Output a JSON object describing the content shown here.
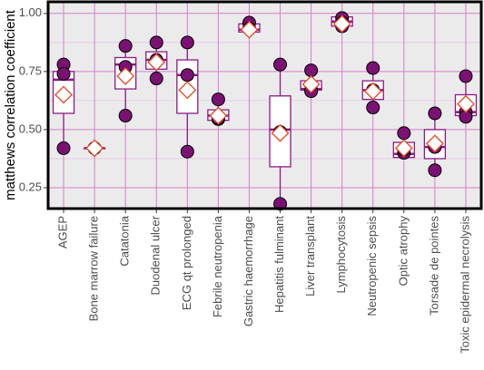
{
  "chart_data": {
    "type": "box",
    "y_label": "matthews correlation coefficient",
    "categories": [
      "AGEP",
      "Bone marrow failure",
      "Catatonia",
      "Duodenal ulcer",
      "ECG qt prolonged",
      "Febrile neutropenia",
      "Gastric haemorrhage",
      "Hepatitis fulminant",
      "Liver transplant",
      "Lymphocytosis",
      "Neutropenic sepsis",
      "Optic atrophy",
      "Torsade de pointes",
      "Toxic epidermal necrolysis"
    ],
    "boxes": [
      {
        "whislo": 0.42,
        "q1": 0.57,
        "med": 0.715,
        "q3": 0.75,
        "whishi": 0.78,
        "mean": 0.65,
        "points": [
          0.78,
          0.74,
          0.42
        ]
      },
      {
        "whislo": 0.42,
        "q1": 0.42,
        "med": 0.42,
        "q3": 0.42,
        "whishi": 0.42,
        "mean": 0.42,
        "points": [
          0.42,
          0.42
        ]
      },
      {
        "whislo": 0.56,
        "q1": 0.675,
        "med": 0.78,
        "q3": 0.81,
        "whishi": 0.86,
        "mean": 0.73,
        "points": [
          0.86,
          0.77,
          0.56
        ]
      },
      {
        "whislo": 0.72,
        "q1": 0.76,
        "med": 0.8,
        "q3": 0.835,
        "whishi": 0.875,
        "mean": 0.79,
        "points": [
          0.875,
          0.8,
          0.72
        ]
      },
      {
        "whislo": 0.405,
        "q1": 0.57,
        "med": 0.735,
        "q3": 0.8,
        "whishi": 0.875,
        "mean": 0.67,
        "points": [
          0.875,
          0.735,
          0.405
        ]
      },
      {
        "whislo": 0.54,
        "q1": 0.54,
        "med": 0.56,
        "q3": 0.585,
        "whishi": 0.63,
        "mean": 0.56,
        "points": [
          0.63,
          0.545,
          0.55
        ]
      },
      {
        "whislo": 0.92,
        "q1": 0.92,
        "med": 0.93,
        "q3": 0.955,
        "whishi": 0.96,
        "mean": 0.93,
        "points": [
          0.96,
          0.935
        ]
      },
      {
        "whislo": 0.18,
        "q1": 0.34,
        "med": 0.5,
        "q3": 0.645,
        "whishi": 0.78,
        "mean": 0.485,
        "points": [
          0.78,
          0.49,
          0.18
        ]
      },
      {
        "whislo": 0.665,
        "q1": 0.67,
        "med": 0.675,
        "q3": 0.71,
        "whishi": 0.755,
        "mean": 0.695,
        "points": [
          0.755,
          0.67,
          0.665
        ]
      },
      {
        "whislo": 0.945,
        "q1": 0.945,
        "med": 0.965,
        "q3": 0.985,
        "whishi": 0.985,
        "mean": 0.955,
        "points": [
          0.98,
          0.945,
          0.96
        ]
      },
      {
        "whislo": 0.595,
        "q1": 0.63,
        "med": 0.67,
        "q3": 0.71,
        "whishi": 0.765,
        "mean": 0.665,
        "points": [
          0.765,
          0.67,
          0.595
        ]
      },
      {
        "whislo": 0.38,
        "q1": 0.38,
        "med": 0.395,
        "q3": 0.445,
        "whishi": 0.485,
        "mean": 0.42,
        "points": [
          0.485,
          0.4,
          0.415
        ]
      },
      {
        "whislo": 0.325,
        "q1": 0.375,
        "med": 0.425,
        "q3": 0.5,
        "whishi": 0.57,
        "mean": 0.44,
        "points": [
          0.57,
          0.425,
          0.325
        ]
      },
      {
        "whislo": 0.555,
        "q1": 0.56,
        "med": 0.575,
        "q3": 0.65,
        "whishi": 0.73,
        "mean": 0.61,
        "points": [
          0.73,
          0.575,
          0.555
        ]
      }
    ],
    "box_color": "#8e1a86",
    "point_color": "#7b1173",
    "mean_color": "#e8451d",
    "ylim": [
      0.16,
      1.05
    ],
    "yticks": [
      0.25,
      {
        "value": 0.5,
        "label": "0.50"
      },
      0.75,
      {
        "value": 1,
        "label": "1.00"
      }
    ],
    "minor_yticks": [
      0.375,
      0.625,
      0.875
    ],
    "grid": true
  }
}
